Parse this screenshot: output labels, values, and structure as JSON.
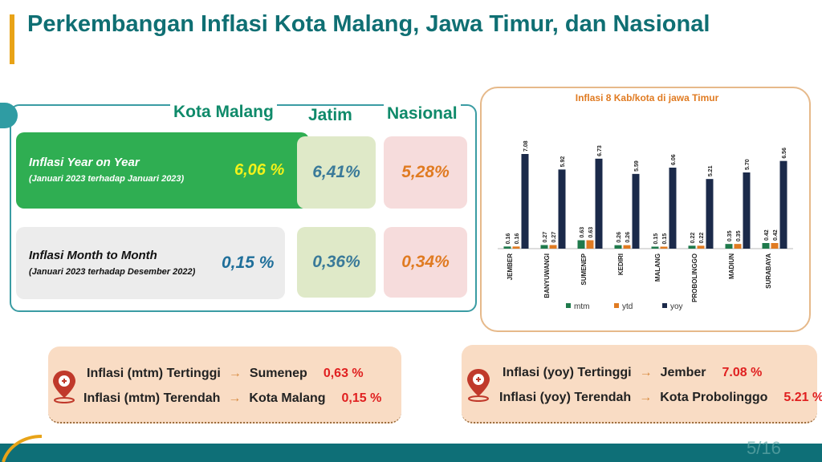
{
  "header": {
    "title": "Perkembangan Inflasi Kota Malang, Jawa Timur, dan Nasional"
  },
  "table": {
    "columns": [
      "Kota Malang",
      "Jatim",
      "Nasional"
    ],
    "rows": [
      {
        "label": [
          "Inflasi",
          "Year on Year"
        ],
        "period": "(Januari 2023 terhadap  Januari 2023)",
        "values": [
          "6,06 %",
          "6,41%",
          "5,28%"
        ]
      },
      {
        "label": [
          "Inflasi",
          "Month to Month"
        ],
        "period": "(Januari 2023 terhadap Desember 2022)",
        "values": [
          "0,15 %",
          "0,36%",
          "0,34%"
        ]
      }
    ]
  },
  "highlights": [
    [
      {
        "label": "Inflasi (mtm) Tertinggi",
        "place": "Sumenep",
        "value": "0,63 %"
      },
      {
        "label": "Inflasi (mtm) Terendah",
        "place": "Kota Malang",
        "value": "0,15 %"
      }
    ],
    [
      {
        "label": "Inflasi (yoy) Tertinggi",
        "place": "Jember",
        "value": "7.08 %"
      },
      {
        "label": "Inflasi (yoy) Terendah",
        "place": "Kota Probolinggo",
        "value": "5.21 %"
      }
    ]
  ],
  "page_number": "5/16",
  "chart_data": {
    "type": "bar",
    "title": "Inflasi 8 Kab/kota di jawa Timur",
    "categories": [
      "JEMBER",
      "BANYUWANGI",
      "SUMENEP",
      "KEDIRI",
      "MALANG",
      "PROBOLINGGO",
      "MADIUN",
      "SURABAYA"
    ],
    "series": [
      {
        "name": "mtm",
        "color": "#1f7a4c",
        "values": [
          0.16,
          0.27,
          0.63,
          0.26,
          0.15,
          0.22,
          0.35,
          0.42
        ]
      },
      {
        "name": "ytd",
        "color": "#e07b22",
        "values": [
          0.16,
          0.27,
          0.63,
          0.26,
          0.15,
          0.22,
          0.35,
          0.42
        ]
      },
      {
        "name": "yoy",
        "color": "#1b2a4a",
        "values": [
          7.08,
          5.92,
          6.73,
          5.59,
          6.06,
          5.21,
          5.7,
          6.56
        ],
        "value_labels": [
          "7.08",
          "5.92",
          "6.73",
          "5.59",
          "6.06",
          "5.21",
          "5.70",
          "6.56"
        ]
      }
    ]
  }
}
